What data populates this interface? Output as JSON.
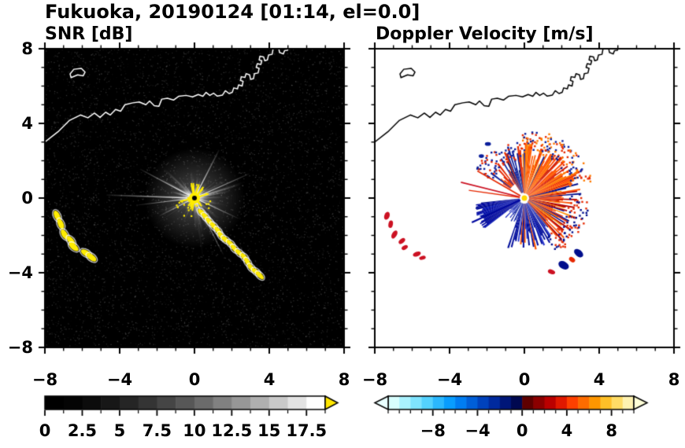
{
  "title": "Fukuoka, 20190124 [01:14, el=0.0]",
  "panels": {
    "snr": {
      "title": "SNR [dB]"
    },
    "doppler": {
      "title": "Doppler Velocity [m/s]"
    }
  },
  "axes": {
    "xlim": [
      -8,
      8
    ],
    "ylim": [
      -8,
      8
    ],
    "major_tick_step": 4,
    "minor_tick_step": 1,
    "x_tick_labels": [
      "−8",
      "−4",
      "0",
      "4",
      "8"
    ],
    "y_tick_labels": [
      "8",
      "4",
      "0",
      "−4",
      "−8"
    ]
  },
  "colorbar_snr": {
    "min": 0,
    "max": 18.75,
    "segments": 15,
    "tick_values": [
      0,
      2.5,
      5,
      7.5,
      10,
      12.5,
      15,
      17.5
    ],
    "tick_labels": [
      "0",
      "2.5",
      "5",
      "7.5",
      "10",
      "12.5",
      "15",
      "17.5"
    ],
    "minor_tick_step": 1.25,
    "arrow_color": "#ffe600",
    "colormap": "black to white grayscale with yellow overflow arrow"
  },
  "colorbar_doppler": {
    "min": -12,
    "max": 10,
    "segment_colors": [
      "#d8ffff",
      "#aaf2ff",
      "#7fe4ff",
      "#54d2ff",
      "#2bb8ff",
      "#089dff",
      "#007df2",
      "#005fd8",
      "#0042bc",
      "#002a9e",
      "#001678",
      "#000850",
      "#5e0000",
      "#8c0000",
      "#ba0000",
      "#e01800",
      "#ff4000",
      "#ff6c00",
      "#ff9600",
      "#ffc028",
      "#ffdc66",
      "#fff2b0"
    ],
    "tick_values": [
      -8,
      -4,
      0,
      4,
      8
    ],
    "tick_labels": [
      "−8",
      "−4",
      "0",
      "4",
      "8"
    ],
    "minor_tick_step": 1,
    "left_arrow_color": "#eaffff",
    "right_arrow_color": "#ffffd8",
    "colormap": "diverging cyan-blue-navy / darkred-orange-yellow"
  },
  "coastline": {
    "main": [
      [
        -8,
        3.0
      ],
      [
        -7.3,
        3.55
      ],
      [
        -6.7,
        4.15
      ],
      [
        -6.1,
        4.45
      ],
      [
        -5.7,
        4.3
      ],
      [
        -5.35,
        4.55
      ],
      [
        -5.05,
        4.32
      ],
      [
        -4.75,
        4.6
      ],
      [
        -4.5,
        4.45
      ],
      [
        -4.22,
        4.75
      ],
      [
        -3.95,
        4.65
      ],
      [
        -3.72,
        5.0
      ],
      [
        -3.3,
        5.1
      ],
      [
        -2.95,
        5.15
      ],
      [
        -2.6,
        5.0
      ],
      [
        -2.4,
        5.2
      ],
      [
        -2.15,
        4.95
      ],
      [
        -1.9,
        4.92
      ],
      [
        -1.75,
        5.3
      ],
      [
        -1.45,
        5.35
      ],
      [
        -1.12,
        5.25
      ],
      [
        -0.85,
        5.45
      ],
      [
        -0.45,
        5.5
      ],
      [
        -0.1,
        5.42
      ],
      [
        0.2,
        5.55
      ],
      [
        0.45,
        5.45
      ],
      [
        0.62,
        5.66
      ],
      [
        0.82,
        5.5
      ],
      [
        1.02,
        5.62
      ],
      [
        1.22,
        5.46
      ],
      [
        1.5,
        5.52
      ],
      [
        1.65,
        5.75
      ],
      [
        1.85,
        5.6
      ],
      [
        2.02,
        5.66
      ],
      [
        2.1,
        5.9
      ],
      [
        2.3,
        5.85
      ],
      [
        2.36,
        6.06
      ],
      [
        2.55,
        6.0
      ],
      [
        2.6,
        6.25
      ],
      [
        2.46,
        6.3
      ],
      [
        2.5,
        6.5
      ],
      [
        2.7,
        6.46
      ],
      [
        2.76,
        6.66
      ],
      [
        2.95,
        6.6
      ],
      [
        3.0,
        6.36
      ],
      [
        3.16,
        6.4
      ],
      [
        3.2,
        6.66
      ],
      [
        3.4,
        6.7
      ],
      [
        3.46,
        6.95
      ],
      [
        3.3,
        7.0
      ],
      [
        3.36,
        7.2
      ],
      [
        3.55,
        7.16
      ],
      [
        3.6,
        7.36
      ],
      [
        3.46,
        7.4
      ],
      [
        3.5,
        7.6
      ],
      [
        3.7,
        7.56
      ],
      [
        3.76,
        7.36
      ],
      [
        3.9,
        7.4
      ],
      [
        3.96,
        7.66
      ],
      [
        4.15,
        7.7
      ],
      [
        4.2,
        7.96
      ],
      [
        4.05,
        8.05
      ]
    ],
    "island": [
      [
        -6.6,
        6.45
      ],
      [
        -6.25,
        6.6
      ],
      [
        -5.95,
        6.55
      ],
      [
        -5.85,
        6.75
      ],
      [
        -6.05,
        6.95
      ],
      [
        -6.45,
        6.9
      ],
      [
        -6.65,
        6.65
      ]
    ],
    "spit": [
      [
        4.5,
        8.05
      ],
      [
        4.55,
        7.8
      ],
      [
        4.75,
        7.72
      ],
      [
        4.82,
        7.9
      ],
      [
        4.98,
        7.92
      ],
      [
        5.02,
        8.05
      ]
    ]
  },
  "chart_data": [
    {
      "type": "heatmap",
      "title": "SNR [dB]",
      "xlim": [
        -8,
        8
      ],
      "ylim": [
        -8,
        8
      ],
      "xticks": [
        -8,
        -4,
        0,
        4,
        8
      ],
      "yticks": [
        -8,
        -4,
        0,
        4,
        8
      ],
      "grid": false,
      "colorbar": {
        "range": [
          0,
          18.75
        ],
        "label_values": [
          0,
          2.5,
          5,
          7.5,
          10,
          12.5,
          15,
          17.5
        ],
        "colormap": "grayscale, yellow saturation arrow"
      },
      "description": "Radar PPI of SNR: starburst of ground-clutter rays around the radar at the origin, saturated yellow echoes at the radar site, along the south-east coastline arc, and isolated echoes near the western edge; coastline drawn in white on black background.",
      "render": {
        "noise": {
          "count": 6000,
          "seed": 11,
          "max_alpha": 0.22
        },
        "glow": {
          "r_units": 2.7,
          "core_alpha": 0.6
        },
        "rays": {
          "count": 120,
          "seed": 5,
          "min_len": 0.7,
          "max_len": 3.8,
          "gap": [
            232,
            266
          ],
          "gap_keep": 0.25
        },
        "bright_rays": [
          {
            "angle": 178,
            "len": 4.7,
            "w": 1.6
          },
          {
            "angle": 187,
            "len": 3.1,
            "w": 1.2
          },
          {
            "angle": 152,
            "len": 3.3,
            "w": 1.4
          },
          {
            "angle": 207,
            "len": 2.1,
            "w": 1.2
          },
          {
            "angle": 297,
            "len": 3.4,
            "w": 1.2
          },
          {
            "angle": 63,
            "len": 2.9,
            "w": 1.5
          },
          {
            "angle": 24,
            "len": 3.2,
            "w": 1.3
          },
          {
            "angle": 335,
            "len": 2.6,
            "w": 1.1
          }
        ],
        "center": {
          "color": "#ffec00",
          "r": 0.3,
          "spikes": 16,
          "spike_min": 0.35,
          "spike_max": 0.85,
          "speckles": 34,
          "dot_r": 3,
          "seed": 9
        },
        "clutter_arc": {
          "points": [
            [
              0.38,
              -0.78
            ],
            [
              0.6,
              -1.02
            ],
            [
              0.82,
              -1.28
            ],
            [
              1.05,
              -1.52
            ],
            [
              1.28,
              -1.78
            ],
            [
              1.45,
              -2.05
            ],
            [
              1.68,
              -2.24
            ],
            [
              1.95,
              -2.46
            ],
            [
              2.15,
              -2.72
            ],
            [
              2.42,
              -2.95
            ],
            [
              2.68,
              -3.18
            ],
            [
              2.85,
              -3.45
            ],
            [
              3.05,
              -3.75
            ],
            [
              3.3,
              -3.95
            ],
            [
              3.5,
              -4.15
            ]
          ],
          "rx": 0.26,
          "ry": 0.12,
          "color": "#ffec00"
        },
        "left_blobs": {
          "points": [
            [
              -7.35,
              -0.95
            ],
            [
              -7.15,
              -1.4
            ],
            [
              -6.95,
              -1.95
            ],
            [
              -6.6,
              -2.3
            ],
            [
              -6.45,
              -2.62
            ],
            [
              -5.8,
              -2.95
            ],
            [
              -5.5,
              -3.18
            ]
          ],
          "rx": 0.3,
          "ry": 0.15,
          "color": "#ffec00"
        }
      }
    },
    {
      "type": "heatmap",
      "title": "Doppler Velocity [m/s]",
      "xlim": [
        -8,
        8
      ],
      "ylim": [
        -8,
        8
      ],
      "xticks": [
        -8,
        -4,
        0,
        4,
        8
      ],
      "yticks": [
        -8,
        -4,
        0,
        4,
        8
      ],
      "grid": false,
      "colorbar": {
        "range": [
          -12,
          10
        ],
        "label_values": [
          -8,
          -4,
          0,
          4,
          8
        ],
        "colormap": "diverging blue/red"
      },
      "description": "Radar PPI of Doppler velocity: red/orange (away) fan over the north-east through east sectors, dark blue (toward) wedge pointing west-south-west and blue sector to the south, red echoes near the western edge matching the SNR clutter, coastline drawn in black on white.",
      "render": {
        "wedges": [
          {
            "a0": 16,
            "a1": 62,
            "r0": 0.15,
            "r1": 3.35,
            "step": 1.5,
            "rjit": 0.45,
            "skip": 0.04,
            "seed": 21,
            "colors": [
              "#ff4a00",
              "#ff6c00",
              "#e62800",
              "#ff8c00",
              "#c81400"
            ]
          },
          {
            "a0": 62,
            "a1": 96,
            "r0": 0.2,
            "r1": 3.0,
            "step": 1.6,
            "rjit": 0.5,
            "skip": 0.06,
            "seed": 22,
            "colors": [
              "#ff5a00",
              "#e62800",
              "#ff8c00",
              "#0a1e9b"
            ]
          },
          {
            "a0": 96,
            "a1": 122,
            "r0": 0.3,
            "r1": 2.9,
            "step": 1.8,
            "rjit": 0.5,
            "skip": 0.08,
            "seed": 23,
            "colors": [
              "#0a1e9b",
              "#12279e",
              "#e63000",
              "#06136e"
            ]
          },
          {
            "a0": 122,
            "a1": 146,
            "r0": 0.9,
            "r1": 2.5,
            "step": 2.2,
            "rjit": 0.55,
            "skip": 0.12,
            "seed": 24,
            "colors": [
              "#e62800",
              "#ff5a00",
              "#0a1e9b"
            ]
          },
          {
            "a0": 186,
            "a1": 217,
            "r0": 0.12,
            "r1": 2.75,
            "step": 1.3,
            "rjit": 0.18,
            "skip": 0,
            "seed": 25,
            "colors": [
              "#0008a0",
              "#000e8c",
              "#0517b4"
            ]
          },
          {
            "a0": 217,
            "a1": 251,
            "r0": 0.3,
            "r1": 1.5,
            "step": 2.0,
            "rjit": 0.5,
            "skip": 0.2,
            "seed": 26,
            "colors": [
              "#0a1e9b",
              "#2030c0"
            ]
          },
          {
            "a0": 251,
            "a1": 308,
            "r0": 0.3,
            "r1": 2.85,
            "step": 1.7,
            "rjit": 0.5,
            "skip": 0.12,
            "seed": 27,
            "colors": [
              "#000e9b",
              "#0a14a0",
              "#2a36cc",
              "#ff5a00"
            ]
          },
          {
            "a0": 308,
            "a1": 376,
            "r0": 0.15,
            "r1": 3.1,
            "step": 1.5,
            "rjit": 0.5,
            "skip": 0.05,
            "seed": 28,
            "colors": [
              "#ff5200",
              "#e62800",
              "#ff8c00",
              "#000e8c",
              "#b00000"
            ]
          }
        ],
        "spray": [
          {
            "a0": 15,
            "a1": 95,
            "r0": 2.5,
            "r1": 3.7,
            "count": 150,
            "seed": 41,
            "colors": [
              "#e62800",
              "#ff7a00",
              "#0a1e9b"
            ]
          },
          {
            "a0": -60,
            "a1": 5,
            "r0": 2.3,
            "r1": 3.4,
            "count": 90,
            "seed": 42,
            "colors": [
              "#e62800",
              "#000e8c"
            ]
          },
          {
            "a0": 95,
            "a1": 150,
            "r0": 2.0,
            "r1": 3.1,
            "count": 70,
            "seed": 43,
            "colors": [
              "#0a1e9b",
              "#e62800"
            ]
          }
        ],
        "thin_rays": [
          {
            "angle": 150,
            "len": 2.9,
            "w": 1.6,
            "color": "#e62800"
          },
          {
            "angle": 166,
            "len": 3.5,
            "w": 1.6,
            "color": "#cc1122"
          },
          {
            "angle": 172,
            "len": 3.0,
            "w": 1.3,
            "color": "#e62800"
          },
          {
            "angle": 205,
            "len": 3.1,
            "w": 2.2,
            "color": "#0008a0"
          }
        ],
        "blobs": [
          {
            "x": -7.35,
            "y": -0.95,
            "rx": 0.22,
            "ry": 0.14,
            "rot": 70,
            "color": "#cc1122"
          },
          {
            "x": -7.15,
            "y": -1.4,
            "rx": 0.2,
            "ry": 0.12,
            "rot": 80,
            "color": "#cc1122"
          },
          {
            "x": -6.95,
            "y": -1.95,
            "rx": 0.24,
            "ry": 0.13,
            "rot": 60,
            "color": "#cc1122"
          },
          {
            "x": -6.55,
            "y": -2.3,
            "rx": 0.2,
            "ry": 0.12,
            "rot": 40,
            "color": "#cc1122"
          },
          {
            "x": -6.4,
            "y": -2.65,
            "rx": 0.18,
            "ry": 0.11,
            "rot": 30,
            "color": "#cc1122"
          },
          {
            "x": -5.75,
            "y": -3.0,
            "rx": 0.22,
            "ry": 0.12,
            "rot": 20,
            "color": "#cc1122"
          },
          {
            "x": -5.45,
            "y": -3.2,
            "rx": 0.18,
            "ry": 0.1,
            "rot": 15,
            "color": "#cc1122"
          },
          {
            "x": 2.1,
            "y": -3.6,
            "rx": 0.3,
            "ry": 0.2,
            "rot": -30,
            "color": "#000e8c"
          },
          {
            "x": 2.9,
            "y": -2.95,
            "rx": 0.28,
            "ry": 0.18,
            "rot": -40,
            "color": "#000e8c"
          },
          {
            "x": 1.45,
            "y": -3.95,
            "rx": 0.2,
            "ry": 0.12,
            "rot": -20,
            "color": "#cc1122"
          },
          {
            "x": 2.55,
            "y": -3.3,
            "rx": 0.18,
            "ry": 0.12,
            "rot": -35,
            "color": "#e62800"
          },
          {
            "x": -1.95,
            "y": 2.9,
            "rx": 0.16,
            "ry": 0.1,
            "rot": 0,
            "color": "#0a1e9b"
          },
          {
            "x": -2.3,
            "y": 2.25,
            "rx": 0.14,
            "ry": 0.1,
            "rot": 0,
            "color": "#0a1e9b"
          }
        ],
        "center": {
          "outer_color": "#ffffff",
          "outer_r": 6,
          "inner_color": "#ffd700",
          "inner_r": 3.5
        }
      }
    }
  ]
}
